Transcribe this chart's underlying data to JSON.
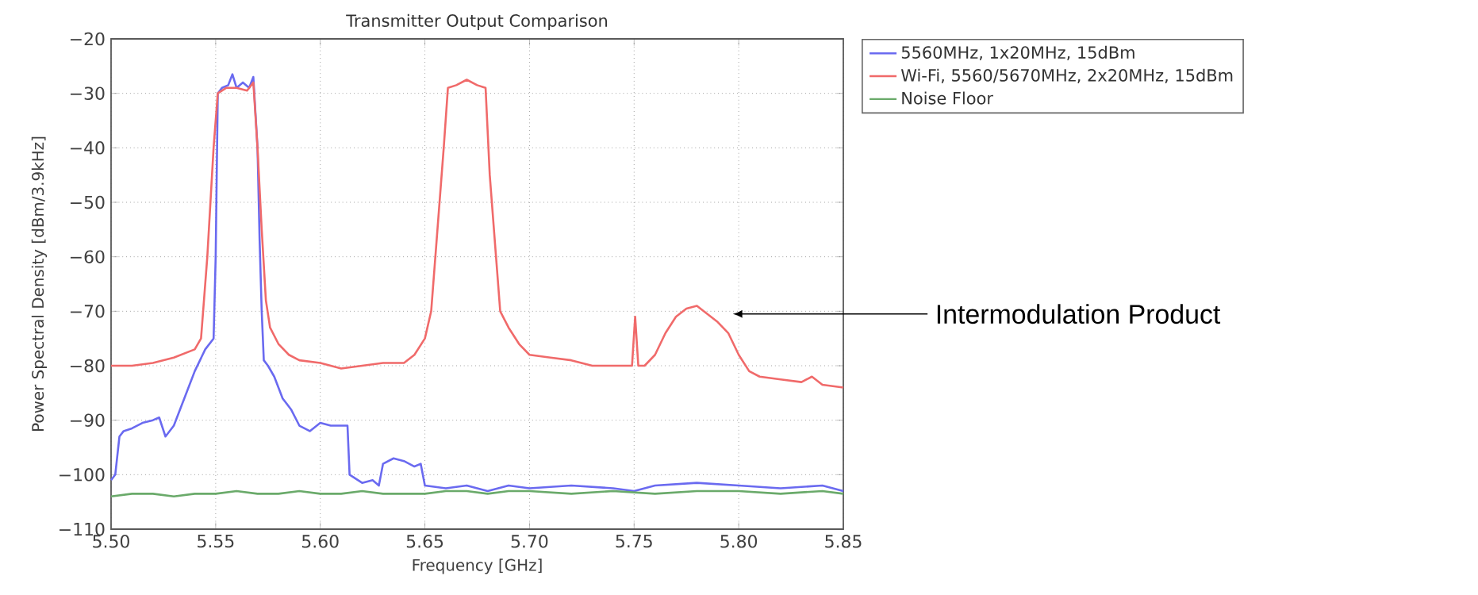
{
  "chart_data": {
    "type": "line",
    "title": "Transmitter Output Comparison",
    "xlabel": "Frequency [GHz]",
    "ylabel": "Power Spectral Density [dBm/3.9kHz]",
    "xlim": [
      5.5,
      5.85
    ],
    "ylim": [
      -110,
      -20
    ],
    "xticks": [
      {
        "value": 5.5,
        "label": "5.50"
      },
      {
        "value": 5.55,
        "label": "5.55"
      },
      {
        "value": 5.6,
        "label": "5.60"
      },
      {
        "value": 5.65,
        "label": "5.65"
      },
      {
        "value": 5.7,
        "label": "5.70"
      },
      {
        "value": 5.75,
        "label": "5.75"
      },
      {
        "value": 5.8,
        "label": "5.80"
      },
      {
        "value": 5.85,
        "label": "5.85"
      }
    ],
    "yticks": [
      {
        "value": -110,
        "label": "−110"
      },
      {
        "value": -100,
        "label": "−100"
      },
      {
        "value": -90,
        "label": "−90"
      },
      {
        "value": -80,
        "label": "−80"
      },
      {
        "value": -70,
        "label": "−70"
      },
      {
        "value": -60,
        "label": "−60"
      },
      {
        "value": -50,
        "label": "−50"
      },
      {
        "value": -40,
        "label": "−40"
      },
      {
        "value": -30,
        "label": "−30"
      },
      {
        "value": -20,
        "label": "−20"
      }
    ],
    "grid": true,
    "legend": "right",
    "line_style": "solid",
    "marker": "none",
    "annotations": [
      "Intermodulation Product"
    ],
    "series": [
      {
        "name": "5560MHz, 1x20MHz, 15dBm",
        "color": "#6a6af0",
        "x": [
          5.5,
          5.502,
          5.504,
          5.506,
          5.51,
          5.515,
          5.52,
          5.523,
          5.526,
          5.53,
          5.535,
          5.54,
          5.545,
          5.549,
          5.55,
          5.551,
          5.553,
          5.556,
          5.558,
          5.56,
          5.563,
          5.566,
          5.568,
          5.57,
          5.571,
          5.572,
          5.573,
          5.575,
          5.578,
          5.582,
          5.586,
          5.59,
          5.595,
          5.6,
          5.605,
          5.61,
          5.613,
          5.614,
          5.62,
          5.625,
          5.628,
          5.63,
          5.635,
          5.64,
          5.645,
          5.648,
          5.65,
          5.66,
          5.67,
          5.68,
          5.69,
          5.7,
          5.72,
          5.74,
          5.75,
          5.76,
          5.78,
          5.8,
          5.82,
          5.84,
          5.85
        ],
        "values": [
          -101,
          -100,
          -93,
          -92,
          -91.5,
          -90.5,
          -90,
          -89.5,
          -93,
          -91,
          -86,
          -81,
          -77,
          -75,
          -60,
          -30,
          -29,
          -28.5,
          -26.5,
          -29,
          -28,
          -29,
          -27,
          -40,
          -57,
          -70,
          -79,
          -80,
          -82,
          -86,
          -88,
          -91,
          -92,
          -90.5,
          -91,
          -91,
          -91,
          -100,
          -101.5,
          -101,
          -102,
          -98,
          -97,
          -97.5,
          -98.5,
          -98,
          -102,
          -102.5,
          -102,
          -103,
          -102,
          -102.5,
          -102,
          -102.5,
          -103,
          -102,
          -101.5,
          -102,
          -102.5,
          -102,
          -103
        ]
      },
      {
        "name": "Wi-Fi, 5560/5670MHz, 2x20MHz, 15dBm",
        "color": "#f06a6a",
        "x": [
          5.5,
          5.51,
          5.52,
          5.53,
          5.54,
          5.543,
          5.546,
          5.549,
          5.551,
          5.555,
          5.56,
          5.565,
          5.568,
          5.57,
          5.572,
          5.574,
          5.576,
          5.58,
          5.585,
          5.59,
          5.6,
          5.61,
          5.62,
          5.63,
          5.64,
          5.645,
          5.65,
          5.653,
          5.656,
          5.659,
          5.661,
          5.665,
          5.67,
          5.675,
          5.679,
          5.681,
          5.684,
          5.686,
          5.69,
          5.695,
          5.7,
          5.71,
          5.72,
          5.73,
          5.74,
          5.749,
          5.7505,
          5.752,
          5.755,
          5.76,
          5.765,
          5.77,
          5.775,
          5.78,
          5.785,
          5.79,
          5.795,
          5.8,
          5.805,
          5.81,
          5.82,
          5.83,
          5.835,
          5.84,
          5.85
        ],
        "values": [
          -80,
          -80,
          -79.5,
          -78.5,
          -77,
          -75,
          -60,
          -40,
          -30,
          -29,
          -29,
          -29.5,
          -28,
          -40,
          -55,
          -68,
          -73,
          -76,
          -78,
          -79,
          -79.5,
          -80.5,
          -80,
          -79.5,
          -79.5,
          -78,
          -75,
          -70,
          -55,
          -40,
          -29,
          -28.5,
          -27.5,
          -28.5,
          -29,
          -45,
          -60,
          -70,
          -73,
          -76,
          -78,
          -78.5,
          -79,
          -80,
          -80,
          -80,
          -71,
          -80,
          -80,
          -78,
          -74,
          -71,
          -69.5,
          -69,
          -70.5,
          -72,
          -74,
          -78,
          -81,
          -82,
          -82.5,
          -83,
          -82,
          -83.5,
          -84
        ]
      },
      {
        "name": "Noise Floor",
        "color": "#6aaa6a",
        "x": [
          5.5,
          5.51,
          5.52,
          5.53,
          5.54,
          5.55,
          5.56,
          5.57,
          5.58,
          5.59,
          5.6,
          5.61,
          5.62,
          5.63,
          5.64,
          5.65,
          5.66,
          5.67,
          5.68,
          5.69,
          5.7,
          5.72,
          5.74,
          5.76,
          5.78,
          5.8,
          5.82,
          5.84,
          5.85
        ],
        "values": [
          -104,
          -103.5,
          -103.5,
          -104,
          -103.5,
          -103.5,
          -103,
          -103.5,
          -103.5,
          -103,
          -103.5,
          -103.5,
          -103,
          -103.5,
          -103.5,
          -103.5,
          -103,
          -103,
          -103.5,
          -103,
          -103,
          -103.5,
          -103,
          -103.5,
          -103,
          -103,
          -103.5,
          -103,
          -103.5
        ]
      }
    ]
  }
}
